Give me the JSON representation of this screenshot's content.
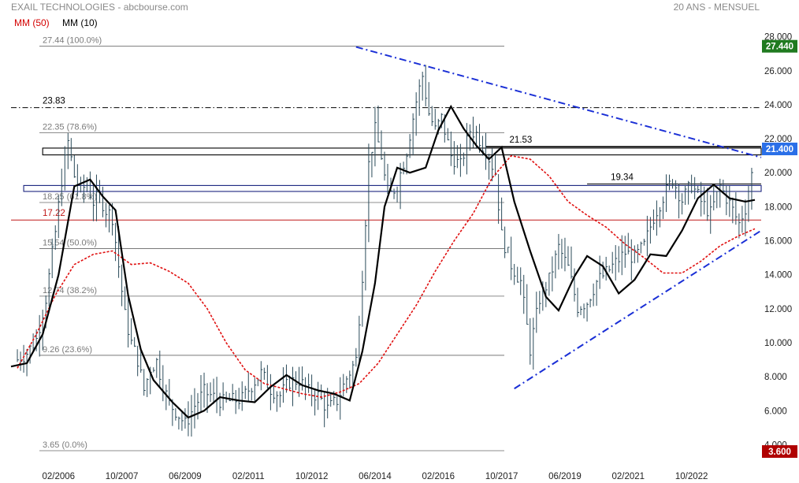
{
  "header": {
    "title": "EXAIL TECHNOLOGIES - abcbourse.com",
    "period": "20 ANS - MENSUEL"
  },
  "indicators": [
    {
      "label": "MM (50)",
      "color": "#d40000"
    },
    {
      "label": "MM (10)",
      "color": "#000000"
    }
  ],
  "colors": {
    "bars": "#2b4b5a",
    "mm50": "#e01010",
    "mm10": "#000000",
    "trendline": "#1a2fd6",
    "fib_line": "#666666",
    "resistance_line": "#000000",
    "support_line": "#c01818",
    "last_price_badge": "#1f7a1f",
    "blue_badge": "#2a6fe8",
    "low_badge": "#b00000"
  },
  "chart_data": {
    "type": "ohlc",
    "title": "",
    "xlabel": "",
    "ylabel": "",
    "ylim": [
      3.0,
      28.4
    ],
    "xlim": [
      "2004-11",
      "2024-08"
    ],
    "grid": false,
    "legend_position": "top-left",
    "y_ticks": [
      "4.000",
      "6.000",
      "8.000",
      "10.000",
      "12.000",
      "14.000",
      "16.000",
      "18.000",
      "20.000",
      "22.000",
      "24.000",
      "26.000",
      "28.000"
    ],
    "x_ticks": [
      "02/2006",
      "10/2007",
      "06/2009",
      "02/2011",
      "10/2012",
      "06/2014",
      "02/2016",
      "10/2017",
      "06/2019",
      "02/2021",
      "10/2022"
    ],
    "price_badges": [
      {
        "label": "27.440",
        "value": 27.44,
        "color_key": "last_price_badge"
      },
      {
        "label": "21.400",
        "value": 21.4,
        "color_key": "blue_badge"
      },
      {
        "label": "3.600",
        "value": 3.6,
        "color_key": "low_badge"
      }
    ],
    "fibonacci_levels": [
      {
        "label": "27.44  (100.0%)",
        "value": 27.44
      },
      {
        "label": "22.35  (78.6%)",
        "value": 22.35
      },
      {
        "label": "18.25  (61.8%)",
        "value": 18.25
      },
      {
        "label": "15.54  (50.0%)",
        "value": 15.54
      },
      {
        "label": "12.74  (38.2%)",
        "value": 12.74
      },
      {
        "label": "9.26  (23.6%)",
        "value": 9.26
      },
      {
        "label": "3.65  (0.0%)",
        "value": 3.65
      }
    ],
    "horizontal_levels": [
      {
        "label": "23.83",
        "value": 23.83,
        "style": "dashdot",
        "from": "2004-11",
        "to": "2024-08",
        "color_key": "resistance_line"
      },
      {
        "label": "21.53",
        "value": 21.53,
        "style": "solid",
        "from": "2017-05",
        "to": "2024-08",
        "color_key": "resistance_line"
      },
      {
        "label": "19.34",
        "value": 19.34,
        "style": "solid",
        "from": "2020-01",
        "to": "2024-08",
        "color_key": "resistance_line"
      },
      {
        "label": "17.22",
        "value": 17.22,
        "style": "solid",
        "from": "2004-11",
        "to": "2024-08",
        "color_key": "support_line"
      }
    ],
    "zones": [
      {
        "from": "2005-09",
        "to": "2024-08",
        "low": 21.05,
        "high": 21.45,
        "color": "#000000"
      },
      {
        "from": "2005-03",
        "to": "2024-08",
        "low": 18.9,
        "high": 19.25,
        "color": "#1a237e"
      }
    ],
    "trendlines": [
      {
        "from": [
          "2013-12",
          27.4
        ],
        "to": [
          "2024-08",
          20.9
        ],
        "style": "dashdot"
      },
      {
        "from": [
          "2018-02",
          7.3
        ],
        "to": [
          "2024-08",
          16.6
        ],
        "style": "dashdot"
      }
    ],
    "series": [
      {
        "name": "Prix",
        "kind": "ohlc",
        "points": [
          [
            "2005-01",
            9.0
          ],
          [
            "2005-04",
            9.4
          ],
          [
            "2005-07",
            10.2
          ],
          [
            "2005-10",
            12.6
          ],
          [
            "2006-01",
            16.5
          ],
          [
            "2006-03",
            19.6
          ],
          [
            "2006-05",
            21.8
          ],
          [
            "2006-07",
            19.8
          ],
          [
            "2006-09",
            19.0
          ],
          [
            "2006-11",
            19.3
          ],
          [
            "2007-01",
            18.3
          ],
          [
            "2007-03",
            18.6
          ],
          [
            "2007-05",
            17.8
          ],
          [
            "2007-07",
            17.4
          ],
          [
            "2007-09",
            14.5
          ],
          [
            "2007-11",
            11.6
          ],
          [
            "2008-01",
            10.0
          ],
          [
            "2008-03",
            9.0
          ],
          [
            "2008-05",
            7.2
          ],
          [
            "2008-07",
            8.5
          ],
          [
            "2008-09",
            8.9
          ],
          [
            "2008-11",
            7.5
          ],
          [
            "2009-01",
            6.4
          ],
          [
            "2009-03",
            6.0
          ],
          [
            "2009-06",
            5.2
          ],
          [
            "2009-09",
            6.3
          ],
          [
            "2009-12",
            7.1
          ],
          [
            "2010-03",
            6.8
          ],
          [
            "2010-06",
            6.5
          ],
          [
            "2010-09",
            6.6
          ],
          [
            "2010-12",
            6.7
          ],
          [
            "2011-03",
            7.5
          ],
          [
            "2011-06",
            8.2
          ],
          [
            "2011-09",
            7.3
          ],
          [
            "2011-12",
            6.9
          ],
          [
            "2012-03",
            7.7
          ],
          [
            "2012-06",
            7.8
          ],
          [
            "2012-09",
            7.1
          ],
          [
            "2012-12",
            6.9
          ],
          [
            "2013-03",
            6.1
          ],
          [
            "2013-06",
            6.6
          ],
          [
            "2013-09",
            7.9
          ],
          [
            "2013-12",
            9.0
          ],
          [
            "2014-02",
            14.0
          ],
          [
            "2014-04",
            20.5
          ],
          [
            "2014-06",
            22.5
          ],
          [
            "2014-08",
            21.0
          ],
          [
            "2014-10",
            18.5
          ],
          [
            "2015-01",
            19.3
          ],
          [
            "2015-04",
            21.3
          ],
          [
            "2015-07",
            24.2
          ],
          [
            "2015-09",
            25.7
          ],
          [
            "2015-11",
            23.5
          ],
          [
            "2016-01",
            22.5
          ],
          [
            "2016-03",
            23.2
          ],
          [
            "2016-06",
            21.0
          ],
          [
            "2016-09",
            20.4
          ],
          [
            "2016-12",
            22.5
          ],
          [
            "2017-02",
            22.3
          ],
          [
            "2017-05",
            21.3
          ],
          [
            "2017-08",
            20.0
          ],
          [
            "2017-10",
            16.3
          ],
          [
            "2018-01",
            14.6
          ],
          [
            "2018-04",
            13.6
          ],
          [
            "2018-07",
            9.6
          ],
          [
            "2018-10",
            12.6
          ],
          [
            "2019-01",
            13.7
          ],
          [
            "2019-04",
            15.6
          ],
          [
            "2019-07",
            14.4
          ],
          [
            "2019-10",
            12.1
          ],
          [
            "2020-01",
            12.4
          ],
          [
            "2020-04",
            13.6
          ],
          [
            "2020-07",
            14.1
          ],
          [
            "2020-10",
            14.7
          ],
          [
            "2021-01",
            15.3
          ],
          [
            "2021-04",
            15.0
          ],
          [
            "2021-07",
            15.7
          ],
          [
            "2021-10",
            17.4
          ],
          [
            "2022-01",
            18.6
          ],
          [
            "2022-04",
            19.6
          ],
          [
            "2022-07",
            18.4
          ],
          [
            "2022-10",
            19.3
          ],
          [
            "2023-01",
            18.3
          ],
          [
            "2023-04",
            17.6
          ],
          [
            "2023-07",
            19.2
          ],
          [
            "2023-10",
            18.2
          ],
          [
            "2024-01",
            17.0
          ],
          [
            "2024-04",
            18.4
          ],
          [
            "2024-06",
            21.4
          ]
        ]
      },
      {
        "name": "MM (10)",
        "kind": "line",
        "points": [
          [
            "2004-11",
            8.6
          ],
          [
            "2005-04",
            8.8
          ],
          [
            "2005-09",
            10.5
          ],
          [
            "2006-02",
            14.0
          ],
          [
            "2006-07",
            19.2
          ],
          [
            "2006-12",
            19.6
          ],
          [
            "2007-04",
            18.6
          ],
          [
            "2007-08",
            17.8
          ],
          [
            "2007-12",
            12.8
          ],
          [
            "2008-04",
            9.6
          ],
          [
            "2008-08",
            7.8
          ],
          [
            "2009-02",
            6.5
          ],
          [
            "2009-07",
            5.6
          ],
          [
            "2009-12",
            6.0
          ],
          [
            "2010-05",
            6.8
          ],
          [
            "2010-11",
            6.6
          ],
          [
            "2011-04",
            6.5
          ],
          [
            "2011-09",
            7.4
          ],
          [
            "2012-02",
            8.1
          ],
          [
            "2012-07",
            7.5
          ],
          [
            "2012-12",
            7.2
          ],
          [
            "2013-05",
            7.0
          ],
          [
            "2013-10",
            6.6
          ],
          [
            "2014-02",
            9.5
          ],
          [
            "2014-06",
            13.5
          ],
          [
            "2014-09",
            18.0
          ],
          [
            "2015-01",
            20.3
          ],
          [
            "2015-05",
            20.0
          ],
          [
            "2015-10",
            20.3
          ],
          [
            "2016-02",
            22.5
          ],
          [
            "2016-06",
            23.9
          ],
          [
            "2016-10",
            22.6
          ],
          [
            "2017-02",
            21.6
          ],
          [
            "2017-06",
            20.8
          ],
          [
            "2017-10",
            21.5
          ],
          [
            "2018-02",
            18.3
          ],
          [
            "2018-07",
            15.4
          ],
          [
            "2018-12",
            12.7
          ],
          [
            "2019-04",
            11.9
          ],
          [
            "2019-09",
            13.9
          ],
          [
            "2020-01",
            15.1
          ],
          [
            "2020-06",
            14.5
          ],
          [
            "2020-11",
            12.9
          ],
          [
            "2021-04",
            13.7
          ],
          [
            "2021-09",
            15.2
          ],
          [
            "2022-02",
            15.1
          ],
          [
            "2022-07",
            16.6
          ],
          [
            "2022-12",
            18.5
          ],
          [
            "2023-05",
            19.3
          ],
          [
            "2023-10",
            18.5
          ],
          [
            "2024-03",
            18.3
          ],
          [
            "2024-06",
            18.4
          ]
        ]
      },
      {
        "name": "MM (50)",
        "kind": "line",
        "points": [
          [
            "2005-01",
            8.5
          ],
          [
            "2005-07",
            10.5
          ],
          [
            "2006-01",
            12.8
          ],
          [
            "2006-07",
            14.6
          ],
          [
            "2007-01",
            15.2
          ],
          [
            "2007-07",
            15.4
          ],
          [
            "2008-01",
            14.6
          ],
          [
            "2008-07",
            14.7
          ],
          [
            "2009-01",
            14.2
          ],
          [
            "2009-07",
            13.5
          ],
          [
            "2010-01",
            12.0
          ],
          [
            "2010-07",
            10.0
          ],
          [
            "2011-01",
            8.4
          ],
          [
            "2011-07",
            7.6
          ],
          [
            "2012-01",
            7.3
          ],
          [
            "2012-07",
            7.0
          ],
          [
            "2013-01",
            6.8
          ],
          [
            "2013-07",
            7.1
          ],
          [
            "2014-01",
            7.6
          ],
          [
            "2014-07",
            8.8
          ],
          [
            "2015-01",
            10.5
          ],
          [
            "2015-07",
            12.2
          ],
          [
            "2016-01",
            14.2
          ],
          [
            "2016-07",
            16.0
          ],
          [
            "2017-01",
            17.6
          ],
          [
            "2017-07",
            19.7
          ],
          [
            "2018-01",
            21.0
          ],
          [
            "2018-07",
            20.8
          ],
          [
            "2019-01",
            19.8
          ],
          [
            "2019-07",
            18.3
          ],
          [
            "2020-01",
            17.5
          ],
          [
            "2020-07",
            16.8
          ],
          [
            "2021-01",
            15.8
          ],
          [
            "2021-07",
            15.0
          ],
          [
            "2022-01",
            14.1
          ],
          [
            "2022-07",
            14.1
          ],
          [
            "2023-01",
            14.8
          ],
          [
            "2023-07",
            15.7
          ],
          [
            "2024-01",
            16.3
          ],
          [
            "2024-06",
            16.7
          ]
        ]
      }
    ]
  }
}
